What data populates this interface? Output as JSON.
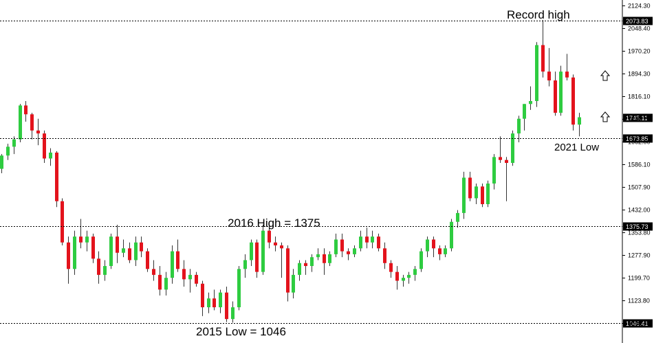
{
  "chart_data": {
    "type": "candlestick",
    "title": "",
    "xlabel": "",
    "ylabel": "",
    "ylim": [
      1030,
      2135
    ],
    "grid": false,
    "colors": {
      "up": "#2ecc40",
      "down": "#e3131c",
      "wick": "#333333",
      "level_line": "#000000",
      "tag_bg": "#000000",
      "tag_text": "#ffffff"
    },
    "y_tick_labels": [
      "2124.30",
      "2048.40",
      "1970.20",
      "1894.30",
      "1816.10",
      "1740.20",
      "1662.00",
      "1586.10",
      "1507.90",
      "1432.00",
      "1353.80",
      "1277.90",
      "1199.70",
      "1123.80",
      "1046.41"
    ],
    "y_tick_values": [
      2124.3,
      2048.4,
      1970.2,
      1894.3,
      1816.1,
      1740.2,
      1662.0,
      1586.1,
      1507.9,
      1432.0,
      1353.8,
      1277.9,
      1199.7,
      1123.8,
      1046.41
    ],
    "levels": [
      {
        "value": 2073.83,
        "label": "2073.83"
      },
      {
        "value": 1673.85,
        "label": "1673.85"
      },
      {
        "value": 1375.73,
        "label": "1375.73"
      },
      {
        "value": 1046.41,
        "label": "1046.41"
      }
    ],
    "current_price": {
      "value": 1745.11,
      "label": "1745.11"
    },
    "annotations": [
      {
        "text": "Record high",
        "anchor_price": 2073.83
      },
      {
        "text": "2016 High = 1375",
        "anchor_price": 1375
      },
      {
        "text": "2015 Low = 1046",
        "anchor_price": 1046
      },
      {
        "text": "2021 Low",
        "anchor_price": 1673.85
      }
    ],
    "arrow_icons": [
      "up-arrow-icon",
      "up-arrow-icon"
    ],
    "candles": [
      [
        1570,
        1620,
        1555,
        1615
      ],
      [
        1615,
        1655,
        1600,
        1645
      ],
      [
        1645,
        1680,
        1620,
        1670
      ],
      [
        1670,
        1790,
        1660,
        1785
      ],
      [
        1785,
        1800,
        1730,
        1755
      ],
      [
        1755,
        1760,
        1670,
        1700
      ],
      [
        1700,
        1740,
        1650,
        1690
      ],
      [
        1690,
        1700,
        1590,
        1605
      ],
      [
        1605,
        1640,
        1580,
        1625
      ],
      [
        1625,
        1630,
        1440,
        1460
      ],
      [
        1460,
        1470,
        1310,
        1320
      ],
      [
        1320,
        1340,
        1180,
        1230
      ],
      [
        1230,
        1360,
        1210,
        1340
      ],
      [
        1340,
        1400,
        1300,
        1320
      ],
      [
        1320,
        1360,
        1290,
        1340
      ],
      [
        1340,
        1350,
        1250,
        1265
      ],
      [
        1265,
        1290,
        1180,
        1210
      ],
      [
        1210,
        1260,
        1190,
        1240
      ],
      [
        1240,
        1350,
        1230,
        1340
      ],
      [
        1340,
        1380,
        1250,
        1285
      ],
      [
        1285,
        1330,
        1270,
        1300
      ],
      [
        1300,
        1320,
        1250,
        1260
      ],
      [
        1260,
        1340,
        1240,
        1320
      ],
      [
        1320,
        1340,
        1270,
        1290
      ],
      [
        1290,
        1300,
        1220,
        1230
      ],
      [
        1230,
        1260,
        1190,
        1210
      ],
      [
        1210,
        1240,
        1140,
        1160
      ],
      [
        1160,
        1220,
        1140,
        1200
      ],
      [
        1200,
        1310,
        1180,
        1290
      ],
      [
        1290,
        1330,
        1220,
        1230
      ],
      [
        1230,
        1260,
        1170,
        1195
      ],
      [
        1195,
        1230,
        1150,
        1210
      ],
      [
        1210,
        1220,
        1170,
        1180
      ],
      [
        1180,
        1190,
        1070,
        1100
      ],
      [
        1100,
        1150,
        1080,
        1130
      ],
      [
        1130,
        1160,
        1090,
        1100
      ],
      [
        1100,
        1160,
        1080,
        1150
      ],
      [
        1150,
        1170,
        1050,
        1060
      ],
      [
        1060,
        1120,
        1048,
        1100
      ],
      [
        1100,
        1240,
        1090,
        1230
      ],
      [
        1230,
        1280,
        1200,
        1260
      ],
      [
        1260,
        1330,
        1240,
        1320
      ],
      [
        1320,
        1330,
        1200,
        1220
      ],
      [
        1220,
        1380,
        1210,
        1360
      ],
      [
        1360,
        1385,
        1300,
        1320
      ],
      [
        1320,
        1340,
        1290,
        1310
      ],
      [
        1310,
        1320,
        1200,
        1300
      ],
      [
        1300,
        1310,
        1120,
        1150
      ],
      [
        1150,
        1230,
        1130,
        1210
      ],
      [
        1210,
        1260,
        1190,
        1250
      ],
      [
        1250,
        1260,
        1210,
        1240
      ],
      [
        1240,
        1280,
        1220,
        1270
      ],
      [
        1270,
        1300,
        1260,
        1280
      ],
      [
        1280,
        1300,
        1210,
        1250
      ],
      [
        1250,
        1290,
        1240,
        1280
      ],
      [
        1280,
        1350,
        1270,
        1330
      ],
      [
        1330,
        1350,
        1270,
        1290
      ],
      [
        1290,
        1300,
        1260,
        1280
      ],
      [
        1280,
        1310,
        1270,
        1300
      ],
      [
        1300,
        1360,
        1290,
        1340
      ],
      [
        1340,
        1370,
        1300,
        1320
      ],
      [
        1320,
        1360,
        1300,
        1340
      ],
      [
        1340,
        1350,
        1290,
        1300
      ],
      [
        1300,
        1320,
        1230,
        1250
      ],
      [
        1250,
        1260,
        1200,
        1220
      ],
      [
        1220,
        1240,
        1160,
        1190
      ],
      [
        1190,
        1210,
        1170,
        1200
      ],
      [
        1200,
        1220,
        1180,
        1210
      ],
      [
        1210,
        1240,
        1190,
        1230
      ],
      [
        1230,
        1300,
        1220,
        1290
      ],
      [
        1290,
        1340,
        1270,
        1330
      ],
      [
        1330,
        1340,
        1270,
        1300
      ],
      [
        1300,
        1310,
        1260,
        1280
      ],
      [
        1280,
        1310,
        1270,
        1300
      ],
      [
        1300,
        1400,
        1290,
        1390
      ],
      [
        1390,
        1430,
        1370,
        1420
      ],
      [
        1420,
        1560,
        1400,
        1540
      ],
      [
        1540,
        1560,
        1460,
        1470
      ],
      [
        1470,
        1520,
        1450,
        1510
      ],
      [
        1510,
        1520,
        1440,
        1450
      ],
      [
        1450,
        1530,
        1440,
        1520
      ],
      [
        1520,
        1620,
        1500,
        1610
      ],
      [
        1610,
        1680,
        1590,
        1600
      ],
      [
        1600,
        1610,
        1460,
        1590
      ],
      [
        1590,
        1700,
        1580,
        1690
      ],
      [
        1690,
        1750,
        1660,
        1740
      ],
      [
        1740,
        1790,
        1700,
        1790
      ],
      [
        1790,
        1850,
        1770,
        1800
      ],
      [
        1800,
        2000,
        1780,
        1990
      ],
      [
        1990,
        2075,
        1880,
        1900
      ],
      [
        1900,
        1980,
        1850,
        1870
      ],
      [
        1870,
        1900,
        1750,
        1760
      ],
      [
        1760,
        1920,
        1750,
        1900
      ],
      [
        1900,
        1960,
        1870,
        1880
      ],
      [
        1880,
        1890,
        1700,
        1720
      ],
      [
        1720,
        1760,
        1680,
        1745
      ]
    ]
  }
}
